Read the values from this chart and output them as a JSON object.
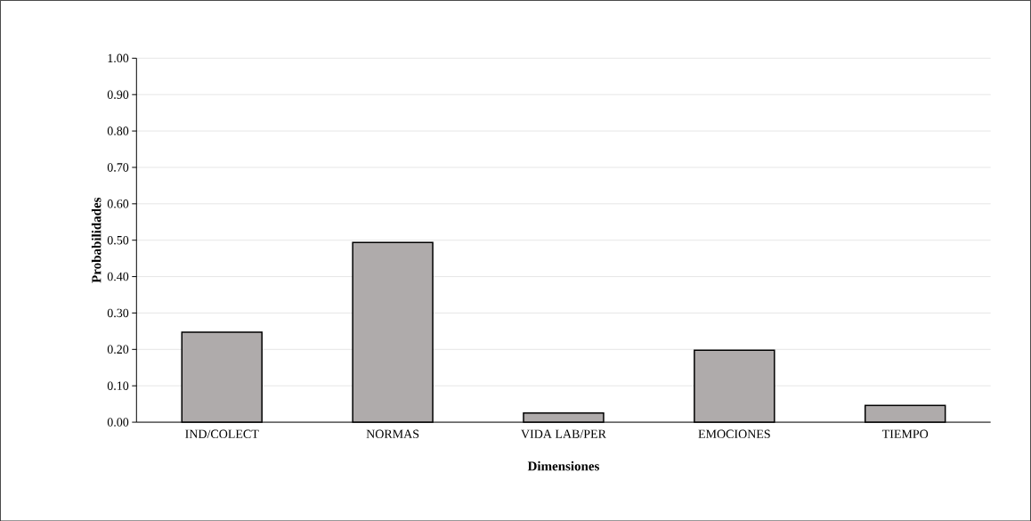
{
  "chart_data": {
    "type": "bar",
    "xlabel": "Dimensiones",
    "ylabel": "Probabilidades",
    "categories": [
      "IND/COLECT",
      "NORMAS",
      "VIDA LAB/PER",
      "EMOCIONES",
      "TIEMPO"
    ],
    "values": [
      0.247,
      0.494,
      0.025,
      0.198,
      0.046
    ],
    "color": "#afabab",
    "ylim": [
      0,
      1
    ],
    "yticks": [
      {
        "value": 0,
        "label": "0.00"
      },
      {
        "value": 0.1,
        "label": "0.10"
      },
      {
        "value": 0.2,
        "label": "0.20"
      },
      {
        "value": 0.3,
        "label": "0.30"
      },
      {
        "value": 0.4,
        "label": "0.40"
      },
      {
        "value": 0.5,
        "label": "0.50"
      },
      {
        "value": 0.6,
        "label": "0.60"
      },
      {
        "value": 0.7,
        "label": "0.70"
      },
      {
        "value": 0.8,
        "label": "0.80"
      },
      {
        "value": 0.9,
        "label": "0.90"
      },
      {
        "value": 1,
        "label": "1.00"
      }
    ],
    "grid": "y"
  }
}
